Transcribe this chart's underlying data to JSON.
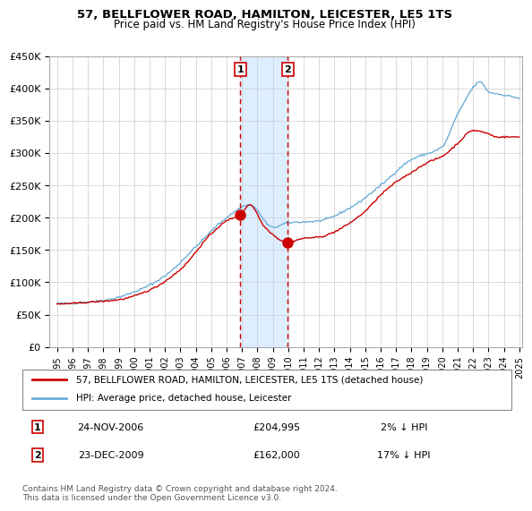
{
  "title": "57, BELLFLOWER ROAD, HAMILTON, LEICESTER, LE5 1TS",
  "subtitle": "Price paid vs. HM Land Registry's House Price Index (HPI)",
  "legend_line1": "57, BELLFLOWER ROAD, HAMILTON, LEICESTER, LE5 1TS (detached house)",
  "legend_line2": "HPI: Average price, detached house, Leicester",
  "marker1_date": "24-NOV-2006",
  "marker1_price": 204995,
  "marker1_pct": "2% ↓ HPI",
  "marker2_date": "23-DEC-2009",
  "marker2_price": 162000,
  "marker2_pct": "17% ↓ HPI",
  "footer": "Contains HM Land Registry data © Crown copyright and database right 2024.\nThis data is licensed under the Open Government Licence v3.0.",
  "hpi_color": "#6baed6",
  "price_color": "#cc0000",
  "marker_color": "#cc0000",
  "shade_color": "#ddeeff",
  "vline_color": "#cc0000",
  "marker1_x": 2006.9,
  "marker2_x": 2009.98,
  "shade_x1": 2006.9,
  "shade_x2": 2009.98,
  "ylim_min": 0,
  "ylim_max": 450000,
  "xlim_min": 1994.5,
  "xlim_max": 2025.2,
  "yticks": [
    0,
    50000,
    100000,
    150000,
    200000,
    250000,
    300000,
    350000,
    400000,
    450000
  ],
  "ytick_labels": [
    "£0",
    "£50K",
    "£100K",
    "£150K",
    "£200K",
    "£250K",
    "£300K",
    "£350K",
    "£400K",
    "£450K"
  ],
  "xticks": [
    1995,
    1996,
    1997,
    1998,
    1999,
    2000,
    2001,
    2002,
    2003,
    2004,
    2005,
    2006,
    2007,
    2008,
    2009,
    2010,
    2011,
    2012,
    2013,
    2014,
    2015,
    2016,
    2017,
    2018,
    2019,
    2020,
    2021,
    2022,
    2023,
    2024,
    2025
  ]
}
